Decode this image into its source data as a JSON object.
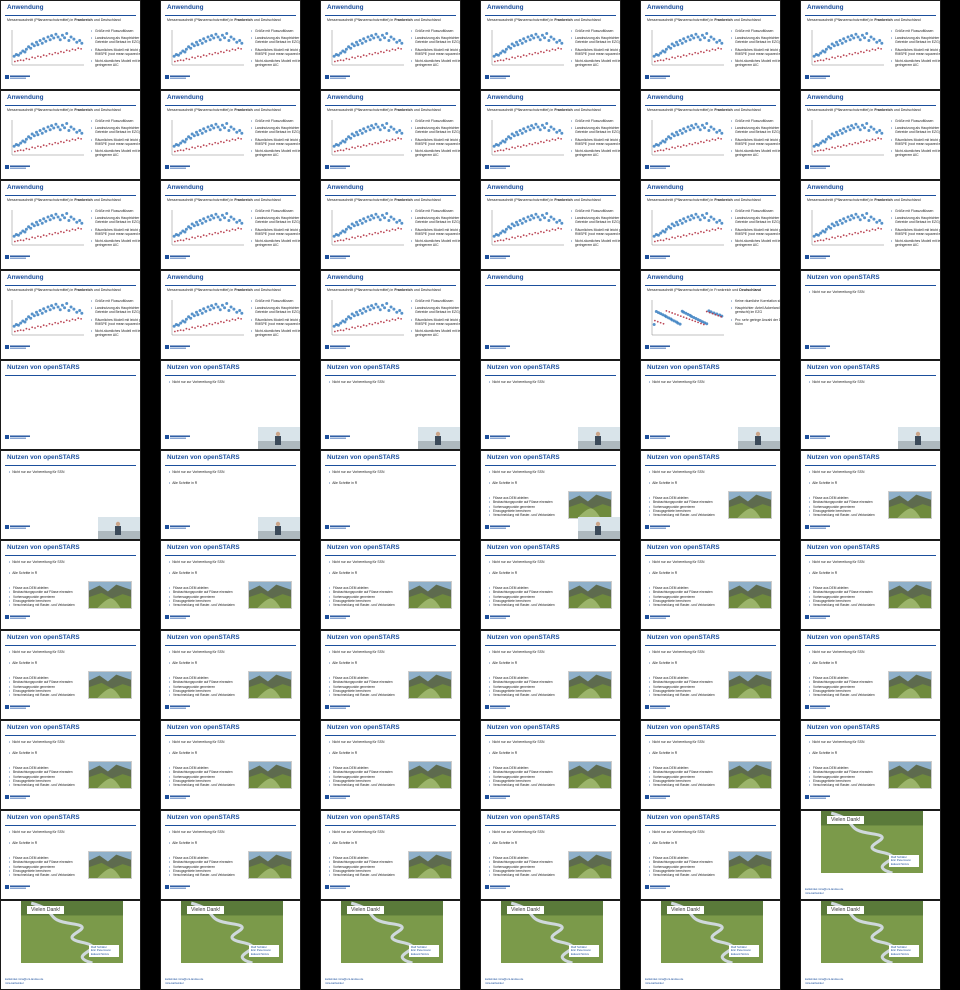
{
  "grid": {
    "columns": 6,
    "rows": 11
  },
  "colors": {
    "accent": "#1b4f9c",
    "point_blue": "#3a7fc1",
    "point_red": "#b0283a",
    "background": "#000000"
  },
  "anwendung": {
    "title": "Anwendung",
    "subtitle_a": {
      "pre": "Messerauschnitt (Pflanzenschutzmittel) in ",
      "bold": "Frankreich",
      "post": " und Deutschland"
    },
    "subtitle_b": {
      "pre": "Messerauschnitt (Pflanzenschutzmittel) in Frankreich und ",
      "bold": "Deutschland",
      "post": ""
    },
    "bullets_a": [
      "Größe mit Flusszuflüssen",
      "Landnutzung als Hauptrichter (Anteil Getreide und Bebaut im EZG)",
      "Räumliches Modell mit leicht geringerem RMSPE (root mean squared error)",
      "Nicht-räumliches Modell mit leicht geringerem AIC"
    ],
    "bullets_b": [
      "Keine räumliche Korrelation sichtbar",
      "Hauptrichter: Anteil Ackerland (Hell-gemischt) im EZG",
      "Pro: sehr geringe Anzahl der Daten in Kühn"
    ]
  },
  "opennutzen": {
    "title": "Nutzen von openSTARS",
    "b1": "Nicht nur zur Vorbereitung für SSN",
    "b2": "Alle Schritte in R",
    "steps": [
      "Flüsse aus DEM ableiten",
      "Beobachtungspunkte auf Flüsse einrasten",
      "Vorhersagepunkte generieren",
      "Einzugsgebiete berechnen",
      "Verschneidung mit Raster- und Vektordaten"
    ]
  },
  "thanks": {
    "title": "Vielen Dank!",
    "names": [
      "Ralf Schäfer",
      "Eric Petermann",
      "Eduard Szöcs"
    ],
    "contact": [
      "kattwinkel.mira@uni-landau.de",
      "mira.kattwinkel"
    ]
  },
  "slides": [
    {
      "type": "anw",
      "v": "a"
    },
    {
      "type": "anw",
      "v": "a"
    },
    {
      "type": "anw",
      "v": "a"
    },
    {
      "type": "anw",
      "v": "a"
    },
    {
      "type": "anw",
      "v": "a"
    },
    {
      "type": "anw",
      "v": "a"
    },
    {
      "type": "anw",
      "v": "a"
    },
    {
      "type": "anw",
      "v": "a"
    },
    {
      "type": "anw",
      "v": "a"
    },
    {
      "type": "anw",
      "v": "a"
    },
    {
      "type": "anw",
      "v": "a"
    },
    {
      "type": "anw",
      "v": "a"
    },
    {
      "type": "anw",
      "v": "a"
    },
    {
      "type": "anw",
      "v": "a"
    },
    {
      "type": "anw",
      "v": "a"
    },
    {
      "type": "anw",
      "v": "a"
    },
    {
      "type": "anw",
      "v": "a"
    },
    {
      "type": "anw",
      "v": "a"
    },
    {
      "type": "anw",
      "v": "a"
    },
    {
      "type": "anw",
      "v": "a"
    },
    {
      "type": "anw",
      "v": "a"
    },
    {
      "type": "anw",
      "v": "blank"
    },
    {
      "type": "anw",
      "v": "b"
    },
    {
      "type": "opn",
      "b1": true,
      "b2": false,
      "steps": false,
      "photo": false,
      "speaker": false
    },
    {
      "type": "opn",
      "b1": false,
      "b2": false,
      "steps": false,
      "photo": false,
      "speaker": false
    },
    {
      "type": "opn",
      "b1": true,
      "b2": false,
      "steps": false,
      "photo": false,
      "speaker": true
    },
    {
      "type": "opn",
      "b1": true,
      "b2": false,
      "steps": false,
      "photo": false,
      "speaker": true
    },
    {
      "type": "opn",
      "b1": true,
      "b2": false,
      "steps": false,
      "photo": false,
      "speaker": true
    },
    {
      "type": "opn",
      "b1": true,
      "b2": false,
      "steps": false,
      "photo": false,
      "speaker": true
    },
    {
      "type": "opn",
      "b1": true,
      "b2": false,
      "steps": false,
      "photo": false,
      "speaker": true
    },
    {
      "type": "opn",
      "b1": true,
      "b2": false,
      "steps": false,
      "photo": false,
      "speaker": true
    },
    {
      "type": "opn",
      "b1": true,
      "b2": true,
      "steps": false,
      "photo": false,
      "speaker": true
    },
    {
      "type": "opn",
      "b1": true,
      "b2": true,
      "steps": false,
      "photo": false,
      "speaker": false
    },
    {
      "type": "opn",
      "b1": true,
      "b2": true,
      "steps": true,
      "photo": true,
      "speaker": true
    },
    {
      "type": "opn",
      "b1": true,
      "b2": true,
      "steps": true,
      "photo": true,
      "speaker": false
    },
    {
      "type": "opn",
      "b1": true,
      "b2": true,
      "steps": true,
      "photo": true,
      "speaker": false
    },
    {
      "type": "opn",
      "b1": true,
      "b2": true,
      "steps": true,
      "photo": true,
      "speaker": false
    },
    {
      "type": "opn",
      "b1": true,
      "b2": true,
      "steps": true,
      "photo": true,
      "speaker": false
    },
    {
      "type": "opn",
      "b1": true,
      "b2": true,
      "steps": true,
      "photo": true,
      "speaker": false
    },
    {
      "type": "opn",
      "b1": true,
      "b2": true,
      "steps": true,
      "photo": true,
      "speaker": false
    },
    {
      "type": "opn",
      "b1": true,
      "b2": true,
      "steps": true,
      "photo": true,
      "speaker": false
    },
    {
      "type": "opn",
      "b1": true,
      "b2": true,
      "steps": true,
      "photo": true,
      "speaker": false
    },
    {
      "type": "opn",
      "b1": true,
      "b2": true,
      "steps": true,
      "photo": true,
      "speaker": false
    },
    {
      "type": "opn",
      "b1": true,
      "b2": true,
      "steps": true,
      "photo": true,
      "speaker": false
    },
    {
      "type": "opn",
      "b1": true,
      "b2": true,
      "steps": true,
      "photo": true,
      "speaker": false
    },
    {
      "type": "opn",
      "b1": true,
      "b2": true,
      "steps": true,
      "photo": true,
      "speaker": false
    },
    {
      "type": "opn",
      "b1": true,
      "b2": true,
      "steps": true,
      "photo": true,
      "speaker": false
    },
    {
      "type": "opn",
      "b1": true,
      "b2": true,
      "steps": true,
      "photo": true,
      "speaker": false
    },
    {
      "type": "opn",
      "b1": true,
      "b2": true,
      "steps": true,
      "photo": true,
      "speaker": false
    },
    {
      "type": "opn",
      "b1": true,
      "b2": true,
      "steps": true,
      "photo": true,
      "speaker": false
    },
    {
      "type": "opn",
      "b1": true,
      "b2": true,
      "steps": true,
      "photo": true,
      "speaker": false
    },
    {
      "type": "opn",
      "b1": true,
      "b2": true,
      "steps": true,
      "photo": true,
      "speaker": false
    },
    {
      "type": "opn",
      "b1": true,
      "b2": true,
      "steps": true,
      "photo": true,
      "speaker": false
    },
    {
      "type": "opn",
      "b1": true,
      "b2": true,
      "steps": true,
      "photo": true,
      "speaker": false
    },
    {
      "type": "opn",
      "b1": true,
      "b2": true,
      "steps": true,
      "photo": true,
      "speaker": false
    },
    {
      "type": "opn",
      "b1": true,
      "b2": true,
      "steps": true,
      "photo": true,
      "speaker": false
    },
    {
      "type": "opn",
      "b1": true,
      "b2": true,
      "steps": true,
      "photo": true,
      "speaker": false
    },
    {
      "type": "opn",
      "b1": true,
      "b2": true,
      "steps": true,
      "photo": true,
      "speaker": false
    },
    {
      "type": "opn",
      "b1": true,
      "b2": true,
      "steps": true,
      "photo": true,
      "speaker": false
    },
    {
      "type": "thx"
    },
    {
      "type": "thx"
    },
    {
      "type": "thx"
    },
    {
      "type": "thx"
    },
    {
      "type": "thx"
    },
    {
      "type": "thx"
    },
    {
      "type": "thx"
    }
  ],
  "chart_data": {
    "type": "scatter",
    "series": [
      {
        "values": [
          [
            3,
            25
          ],
          [
            6,
            30
          ],
          [
            9,
            28
          ],
          [
            12,
            34
          ],
          [
            15,
            40
          ],
          [
            18,
            37
          ],
          [
            20,
            45
          ],
          [
            23,
            52
          ],
          [
            26,
            48
          ],
          [
            28,
            60
          ],
          [
            31,
            55
          ],
          [
            34,
            65
          ],
          [
            36,
            58
          ],
          [
            39,
            70
          ],
          [
            42,
            62
          ],
          [
            44,
            75
          ],
          [
            47,
            68
          ],
          [
            50,
            80
          ],
          [
            53,
            72
          ],
          [
            55,
            84
          ],
          [
            58,
            77
          ],
          [
            61,
            88
          ],
          [
            64,
            80
          ],
          [
            67,
            72
          ],
          [
            70,
            85
          ],
          [
            73,
            78
          ],
          [
            76,
            90
          ],
          [
            79,
            70
          ],
          [
            82,
            80
          ],
          [
            86,
            74
          ],
          [
            90,
            65
          ],
          [
            94,
            70
          ],
          [
            97,
            62
          ]
        ]
      },
      {
        "values": [
          [
            4,
            10
          ],
          [
            8,
            12
          ],
          [
            12,
            14
          ],
          [
            16,
            13
          ],
          [
            20,
            18
          ],
          [
            24,
            16
          ],
          [
            28,
            22
          ],
          [
            32,
            20
          ],
          [
            36,
            25
          ],
          [
            40,
            23
          ],
          [
            44,
            28
          ],
          [
            48,
            26
          ],
          [
            52,
            32
          ],
          [
            56,
            30
          ],
          [
            60,
            35
          ],
          [
            64,
            33
          ],
          [
            68,
            38
          ],
          [
            72,
            36
          ],
          [
            76,
            42
          ],
          [
            80,
            40
          ],
          [
            84,
            45
          ],
          [
            88,
            43
          ],
          [
            92,
            48
          ],
          [
            96,
            46
          ]
        ]
      }
    ]
  }
}
